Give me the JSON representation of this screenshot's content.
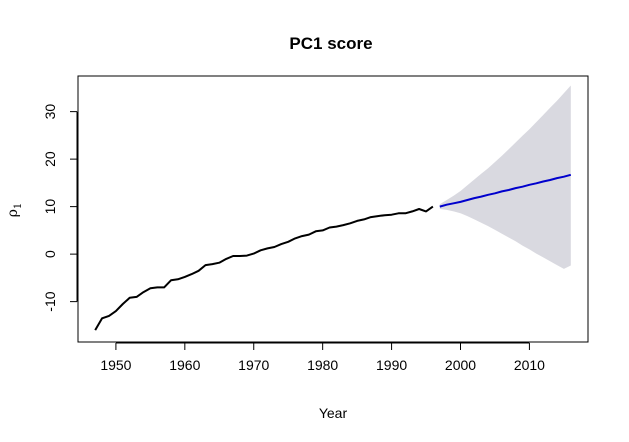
{
  "chart_data": {
    "type": "line",
    "title": "PC1 score",
    "xlabel": "Year",
    "ylabel": "ρ",
    "ylabel_subscript": "1",
    "xlim": [
      1944.5,
      2018.5
    ],
    "ylim": [
      -18.5,
      37.5
    ],
    "xticks": [
      1950,
      1960,
      1970,
      1980,
      1990,
      2000,
      2010
    ],
    "yticks": [
      -10,
      0,
      10,
      20,
      30
    ],
    "grid": false,
    "legend": "none",
    "colors": {
      "observed": "#000000",
      "forecast": "#0000cd",
      "band": "#d9d9e0",
      "frame": "#000000"
    },
    "series": [
      {
        "role": "observed",
        "x": [
          1947,
          1948,
          1949,
          1950,
          1951,
          1952,
          1953,
          1954,
          1955,
          1956,
          1957,
          1958,
          1959,
          1960,
          1961,
          1962,
          1963,
          1964,
          1965,
          1966,
          1967,
          1968,
          1969,
          1970,
          1971,
          1972,
          1973,
          1974,
          1975,
          1976,
          1977,
          1978,
          1979,
          1980,
          1981,
          1982,
          1983,
          1984,
          1985,
          1986,
          1987,
          1988,
          1989,
          1990,
          1991,
          1992,
          1993,
          1994,
          1995,
          1996
        ],
        "y": [
          -16,
          -13.5,
          -13,
          -12,
          -10.5,
          -9.2,
          -9,
          -8,
          -7.2,
          -7,
          -7,
          -5.5,
          -5.3,
          -4.8,
          -4.2,
          -3.5,
          -2.3,
          -2.1,
          -1.8,
          -1,
          -0.4,
          -0.4,
          -0.3,
          0.1,
          0.8,
          1.2,
          1.5,
          2.1,
          2.6,
          3.3,
          3.8,
          4.1,
          4.8,
          5.0,
          5.6,
          5.8,
          6.1,
          6.5,
          7.0,
          7.3,
          7.8,
          8.0,
          8.2,
          8.3,
          8.6,
          8.6,
          9.0,
          9.5,
          9.0,
          10.0
        ]
      },
      {
        "role": "forecast",
        "x": [
          1997,
          1998,
          1999,
          2000,
          2001,
          2002,
          2003,
          2004,
          2005,
          2006,
          2007,
          2008,
          2009,
          2010,
          2011,
          2012,
          2013,
          2014,
          2015,
          2016
        ],
        "y": [
          10.0,
          10.4,
          10.7,
          11.0,
          11.4,
          11.8,
          12.1,
          12.5,
          12.8,
          13.2,
          13.5,
          13.9,
          14.2,
          14.6,
          14.9,
          15.3,
          15.6,
          16.0,
          16.3,
          16.7
        ],
        "lower": [
          9.5,
          9.3,
          9.0,
          8.6,
          8.0,
          7.3,
          6.6,
          5.9,
          5.1,
          4.3,
          3.5,
          2.7,
          1.8,
          1.0,
          0.1,
          -0.7,
          -1.5,
          -2.3,
          -3.1,
          -2.4
        ],
        "upper": [
          10.5,
          11.4,
          12.3,
          13.3,
          14.5,
          15.7,
          16.9,
          18.1,
          19.4,
          20.7,
          22.1,
          23.5,
          24.9,
          26.3,
          27.8,
          29.3,
          30.8,
          32.3,
          33.9,
          35.5
        ]
      }
    ]
  }
}
